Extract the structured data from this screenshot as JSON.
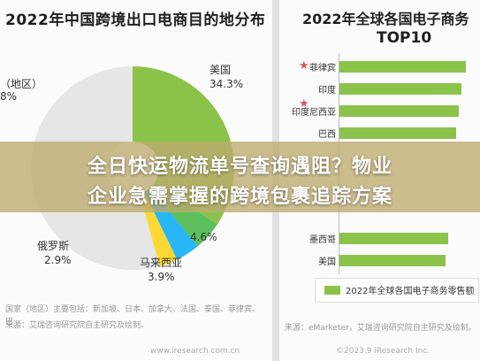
{
  "left": {
    "title": "2022年中国跨境出口电商目的地分布",
    "labels": {
      "usa": "美国",
      "usa_pct": "34.3%",
      "region": "（地区）",
      "region_pct": "8%",
      "russia": "俄罗斯",
      "russia_pct": "2.9%",
      "malaysia": "马来西亚",
      "malaysia_pct": "3.9%",
      "fourth_pct": "4.6%"
    },
    "source_line1": "国家（地区）主要包括：新加坡、日本、加拿大、法国、泰国、菲律宾、巴",
    "source_line2": "来源：艾瑞咨询研究院自主研究及绘制。",
    "watermark": "www.iresearch.com.cn"
  },
  "right": {
    "title_line1": "2022年全球各国电子商务",
    "title_line2": "TOP10",
    "legend": "2022年全球各国电子商务零售额",
    "source": "来源：eMarketer，艾瑞咨询研究院自主研究及绘制。",
    "watermark": "©2023.9 iResearch Inc."
  },
  "banner": {
    "line1": "全日快运物流单号查询遇阻？物业",
    "line2": "企业急需掌握的跨境包裹追踪方案"
  },
  "colors": {
    "bar": "#8bc34a",
    "star": "#e05060"
  },
  "chart_data": [
    {
      "type": "pie",
      "title": "2022年中国跨境出口电商目的地分布",
      "slices": [
        {
          "label": "美国",
          "value": 34.3,
          "color": "#8bc34a"
        },
        {
          "label": "",
          "value": 4.6,
          "color": "#5cbf5c"
        },
        {
          "label": "马来西亚",
          "value": 3.9,
          "color": "#29b6f6"
        },
        {
          "label": "俄罗斯",
          "value": 2.9,
          "color": "#fdd835"
        }
      ]
    },
    {
      "type": "bar",
      "title": "2022年全球各国电子商务 TOP10",
      "categories": [
        "菲律宾",
        "印度",
        "印度尼西亚",
        "巴西",
        "墨西哥",
        "美国"
      ],
      "series": [
        {
          "name": "2022年全球各国电子商务零售额",
          "values": [
            0.95,
            0.92,
            0.9,
            0.88,
            0.82,
            0.8
          ]
        }
      ]
    }
  ]
}
